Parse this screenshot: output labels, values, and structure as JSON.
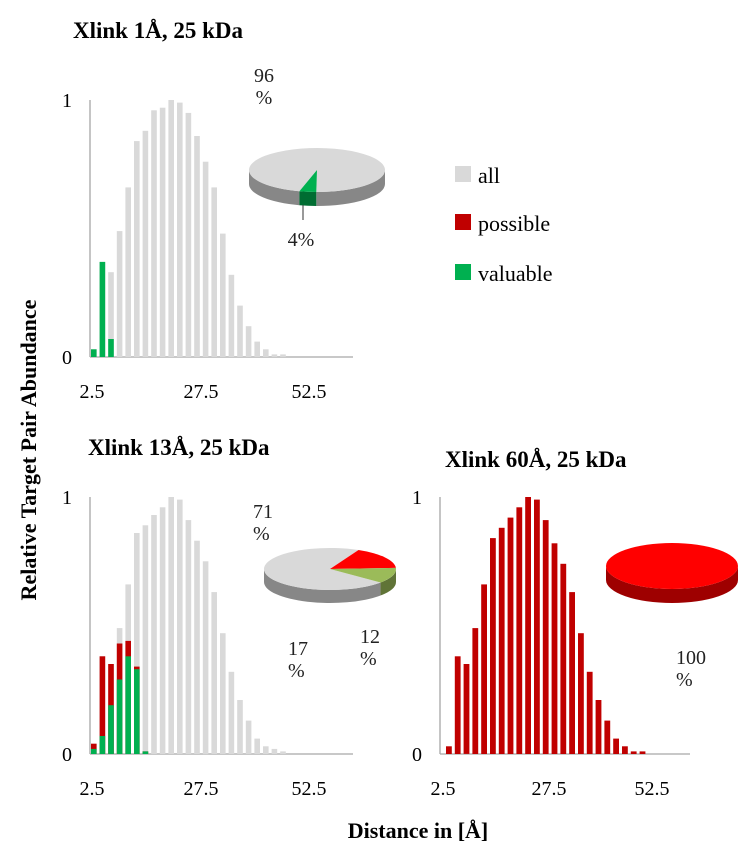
{
  "figure": {
    "ylabel": "Relative Target Pair Abundance",
    "xlabel": "Distance in [Å]"
  },
  "legend": [
    {
      "label": "all",
      "color": "#d9d9d9"
    },
    {
      "label": "possible",
      "color": "#c00000"
    },
    {
      "label": "valuable",
      "color": "#00b050"
    }
  ],
  "chart_data": [
    {
      "type": "bar",
      "title": "Xlink  1Å, 25 kDa",
      "x_ticks": [
        "2.5",
        "27.5",
        "52.5"
      ],
      "y_ticks": [
        "0",
        "1"
      ],
      "ylim": [
        0,
        1
      ],
      "x": [
        2.5,
        5,
        7.5,
        10,
        12.5,
        15,
        17.5,
        20,
        22.5,
        25,
        27.5,
        30,
        32.5,
        35,
        37.5,
        40,
        42.5,
        45,
        47.5,
        50,
        52.5,
        55,
        57.5
      ],
      "series": [
        {
          "name": "all",
          "values": [
            0.03,
            0.37,
            0.33,
            0.49,
            0.66,
            0.84,
            0.88,
            0.96,
            0.97,
            1.0,
            0.99,
            0.95,
            0.86,
            0.76,
            0.66,
            0.48,
            0.32,
            0.2,
            0.12,
            0.06,
            0.03,
            0.01,
            0.01
          ]
        },
        {
          "name": "valuable",
          "values": [
            0.03,
            0.37,
            0.07,
            0,
            0,
            0,
            0,
            0,
            0,
            0,
            0,
            0,
            0,
            0,
            0,
            0,
            0,
            0,
            0,
            0,
            0,
            0,
            0
          ]
        }
      ],
      "pie": {
        "labels": [
          "96\n%",
          "4%"
        ],
        "slices": [
          {
            "name": "all",
            "value": 96,
            "color": "#d9d9d9"
          },
          {
            "name": "valuable",
            "value": 4,
            "color": "#00b050"
          }
        ]
      }
    },
    {
      "type": "bar",
      "title": "Xlink  13Å, 25 kDa",
      "x_ticks": [
        "2.5",
        "27.5",
        "52.5"
      ],
      "y_ticks": [
        "0",
        "1"
      ],
      "ylim": [
        0,
        1
      ],
      "x": [
        2.5,
        5,
        7.5,
        10,
        12.5,
        15,
        17.5,
        20,
        22.5,
        25,
        27.5,
        30,
        32.5,
        35,
        37.5,
        40,
        42.5,
        45,
        47.5,
        50,
        52.5,
        55,
        57.5
      ],
      "series": [
        {
          "name": "all",
          "values": [
            0.04,
            0.38,
            0.35,
            0.49,
            0.66,
            0.86,
            0.89,
            0.93,
            0.96,
            1.0,
            0.99,
            0.91,
            0.83,
            0.75,
            0.63,
            0.47,
            0.32,
            0.21,
            0.13,
            0.06,
            0.03,
            0.02,
            0.01
          ]
        },
        {
          "name": "possible",
          "values": [
            0.04,
            0.38,
            0.35,
            0.43,
            0.44,
            0.34,
            0.01,
            0,
            0,
            0,
            0,
            0,
            0,
            0,
            0,
            0,
            0,
            0,
            0,
            0,
            0,
            0,
            0
          ]
        },
        {
          "name": "valuable",
          "values": [
            0.02,
            0.07,
            0.19,
            0.29,
            0.38,
            0.33,
            0.01,
            0,
            0,
            0,
            0,
            0,
            0,
            0,
            0,
            0,
            0,
            0,
            0,
            0,
            0,
            0,
            0
          ]
        }
      ],
      "pie": {
        "labels": [
          "71\n%",
          "17\n%",
          "12\n%"
        ],
        "slices": [
          {
            "name": "all",
            "value": 71,
            "color": "#d9d9d9"
          },
          {
            "name": "possible",
            "value": 17,
            "color": "#ff0000"
          },
          {
            "name": "valuable",
            "value": 12,
            "color": "#9bbb59"
          }
        ]
      }
    },
    {
      "type": "bar",
      "title": "Xlink  60Å, 25 kDa",
      "x_ticks": [
        "2.5",
        "27.5",
        "52.5"
      ],
      "y_ticks": [
        "0",
        "1"
      ],
      "ylim": [
        0,
        1
      ],
      "x": [
        2.5,
        5,
        7.5,
        10,
        12.5,
        15,
        17.5,
        20,
        22.5,
        25,
        27.5,
        30,
        32.5,
        35,
        37.5,
        40,
        42.5,
        45,
        47.5,
        50,
        52.5,
        55,
        57.5
      ],
      "series": [
        {
          "name": "possible",
          "values": [
            0.03,
            0.38,
            0.35,
            0.49,
            0.66,
            0.84,
            0.88,
            0.92,
            0.96,
            1.0,
            0.99,
            0.91,
            0.82,
            0.74,
            0.63,
            0.47,
            0.32,
            0.21,
            0.13,
            0.06,
            0.03,
            0.01,
            0.01
          ]
        }
      ],
      "pie": {
        "labels": [
          "100\n%"
        ],
        "slices": [
          {
            "name": "possible",
            "value": 100,
            "color": "#ff0000"
          }
        ]
      }
    }
  ]
}
